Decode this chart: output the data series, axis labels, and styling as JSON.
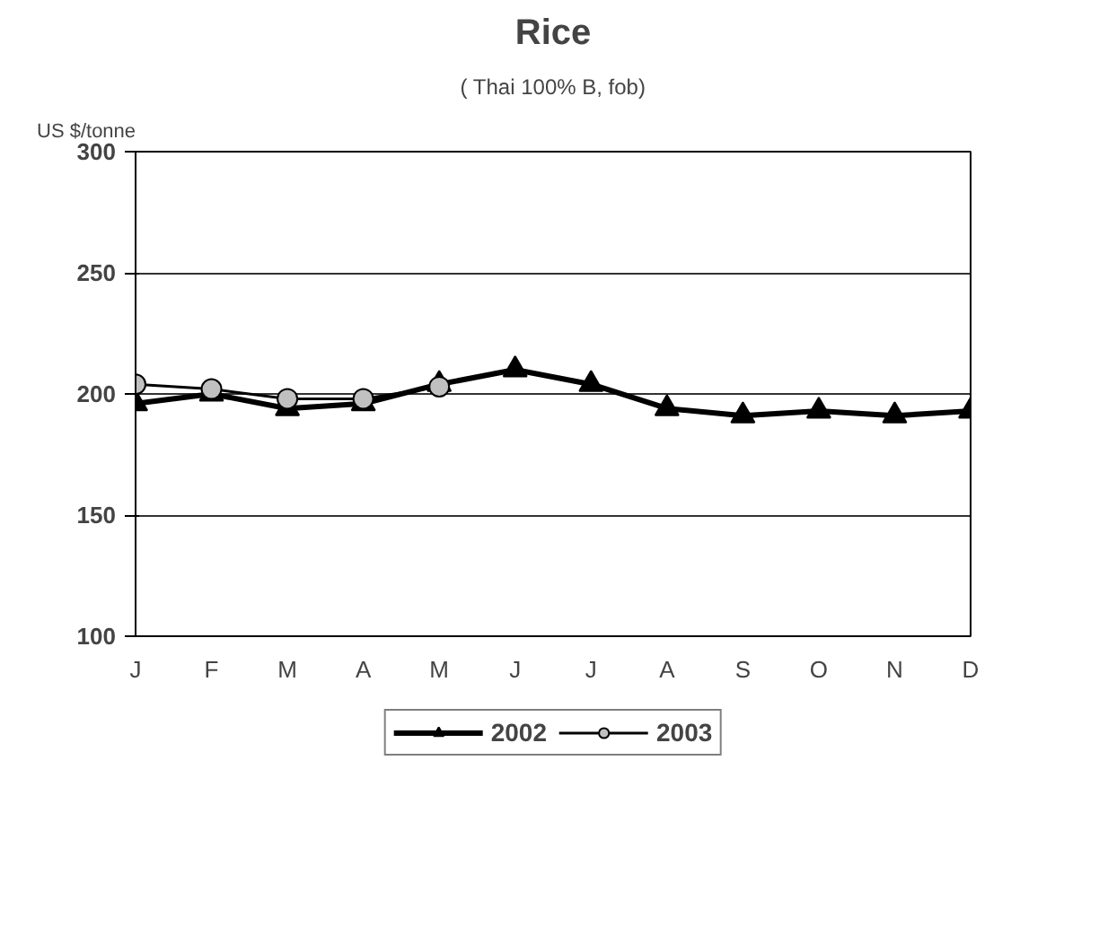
{
  "chart_data": {
    "type": "line",
    "title": "Rice",
    "subtitle": "( Thai 100% B, fob)",
    "ylabel": "US $/tonne",
    "categories": [
      "J",
      "F",
      "M",
      "A",
      "M",
      "J",
      "J",
      "A",
      "S",
      "O",
      "N",
      "D"
    ],
    "series": [
      {
        "name": "2002",
        "color": "#000000",
        "marker": "triangle",
        "values": [
          196,
          200,
          194,
          196,
          204,
          210,
          204,
          194,
          191,
          193,
          191,
          193
        ]
      },
      {
        "name": "2003",
        "color": "#c0c0c0",
        "marker": "circle",
        "values": [
          204,
          202,
          198,
          198,
          203,
          null,
          null,
          null,
          null,
          null,
          null,
          null
        ]
      }
    ],
    "ylim": [
      100,
      300
    ],
    "yticks": [
      100,
      150,
      200,
      250,
      300
    ],
    "grid": "y",
    "legend": "bottom"
  }
}
